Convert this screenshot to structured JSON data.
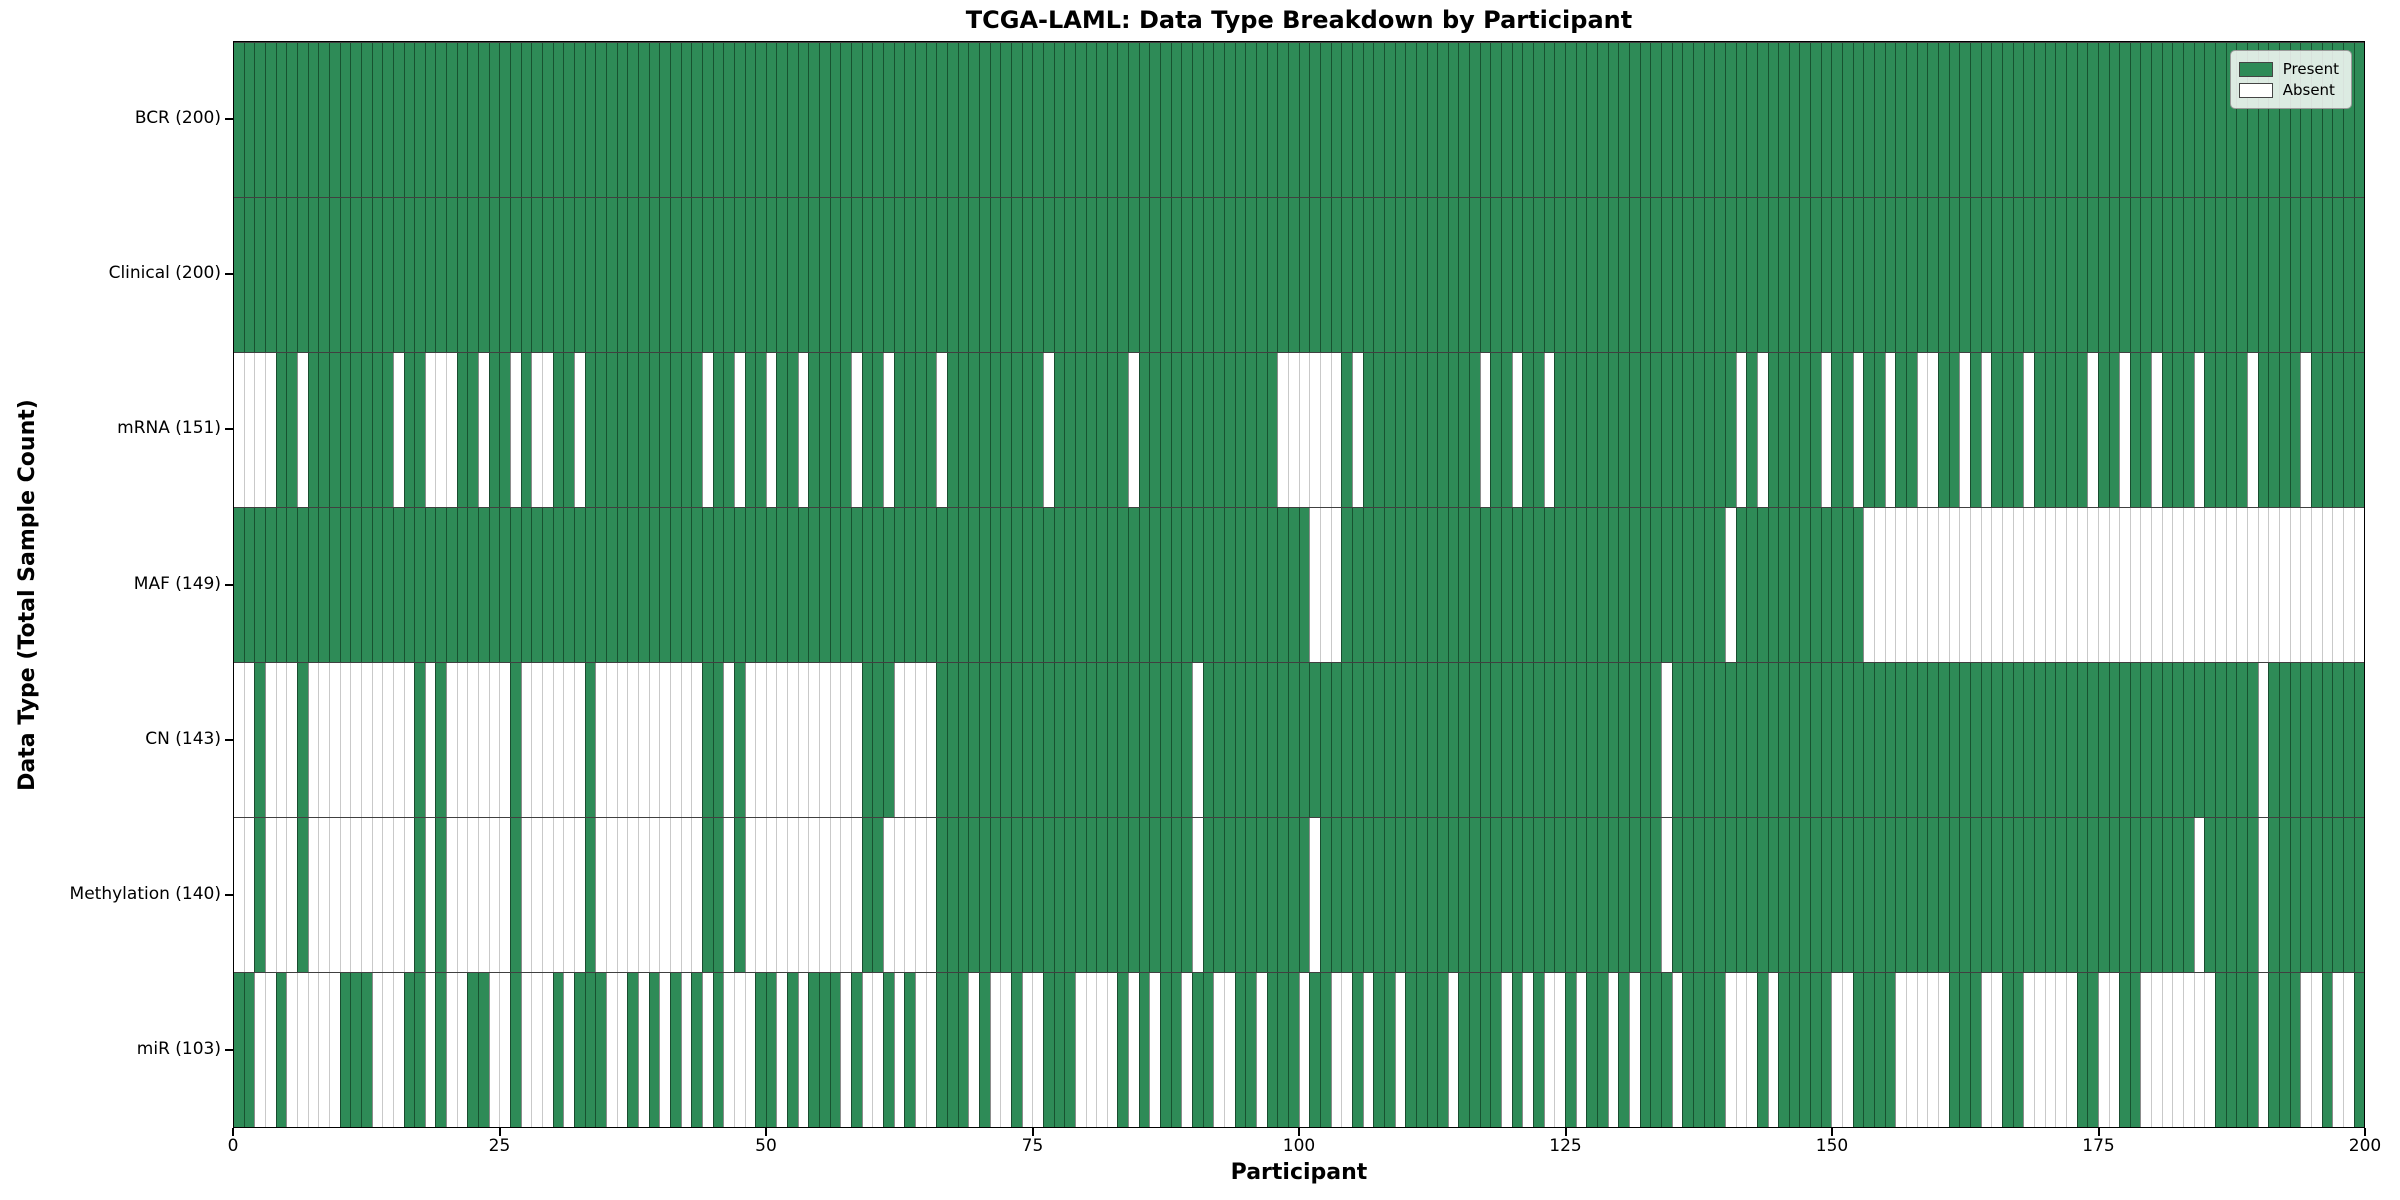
{
  "chart_data": {
    "type": "heatmap",
    "title": "TCGA-LAML: Data Type Breakdown by Participant",
    "xlabel": "Participant",
    "ylabel": "Data Type (Total Sample Count)",
    "x_range": [
      0,
      200
    ],
    "n_participants": 200,
    "x_ticks": [
      0,
      25,
      50,
      75,
      100,
      125,
      150,
      175,
      200
    ],
    "grid": false,
    "legend_position": "upper right",
    "legend": {
      "present_label": "Present",
      "absent_label": "Absent"
    },
    "colors": {
      "present": "#2e8b57",
      "absent": "#ffffff",
      "present_edge": "rgba(0,25,10,0.5)",
      "absent_edge": "#c9c9c9",
      "row_divider": "rgba(0,0,0,0.75)"
    },
    "rows": [
      {
        "label": "BCR (200)",
        "name": "BCR",
        "present_count": 200,
        "absent_indices": []
      },
      {
        "label": "Clinical (200)",
        "name": "Clinical",
        "present_count": 200,
        "absent_indices": []
      },
      {
        "label": "mRNA (151)",
        "name": "mRNA",
        "present_count": 151,
        "absent_indices": [
          0,
          1,
          2,
          3,
          6,
          15,
          18,
          19,
          20,
          23,
          26,
          28,
          29,
          32,
          44,
          47,
          50,
          53,
          58,
          61,
          66,
          76,
          84,
          98,
          99,
          100,
          101,
          102,
          103,
          105,
          117,
          120,
          123,
          141,
          143,
          149,
          152,
          155,
          158,
          159,
          162,
          164,
          168,
          174,
          177,
          180,
          184,
          189,
          194
        ]
      },
      {
        "label": "MAF (149)",
        "name": "MAF",
        "present_count": 149,
        "absent_indices": [
          101,
          102,
          103,
          140,
          153,
          154,
          155,
          156,
          157,
          158,
          159,
          160,
          161,
          162,
          163,
          164,
          165,
          166,
          167,
          168,
          169,
          170,
          171,
          172,
          173,
          174,
          175,
          176,
          177,
          178,
          179,
          180,
          181,
          182,
          183,
          184,
          185,
          186,
          187,
          188,
          189,
          190,
          191,
          192,
          193,
          194,
          195,
          196,
          197,
          198,
          199
        ]
      },
      {
        "label": "CN (143)",
        "name": "CN",
        "present_count": 143,
        "absent_indices": [
          0,
          1,
          3,
          4,
          5,
          7,
          8,
          9,
          10,
          11,
          12,
          13,
          14,
          15,
          16,
          18,
          20,
          21,
          22,
          23,
          24,
          25,
          27,
          28,
          29,
          30,
          31,
          32,
          34,
          35,
          36,
          37,
          38,
          39,
          40,
          41,
          42,
          43,
          46,
          48,
          49,
          50,
          51,
          52,
          53,
          54,
          55,
          56,
          57,
          58,
          62,
          63,
          64,
          65,
          90,
          134,
          190
        ]
      },
      {
        "label": "Methylation (140)",
        "name": "Methylation",
        "present_count": 140,
        "absent_indices": [
          0,
          1,
          3,
          4,
          5,
          7,
          8,
          9,
          10,
          11,
          12,
          13,
          14,
          15,
          16,
          18,
          20,
          21,
          22,
          23,
          24,
          25,
          27,
          28,
          29,
          30,
          31,
          32,
          34,
          35,
          36,
          37,
          38,
          39,
          40,
          41,
          42,
          43,
          46,
          48,
          49,
          50,
          51,
          52,
          53,
          54,
          55,
          56,
          57,
          58,
          61,
          62,
          63,
          64,
          65,
          90,
          101,
          134,
          184,
          190
        ]
      },
      {
        "label": "miR (103)",
        "name": "miR",
        "present_count": 103,
        "absent_indices": [
          2,
          3,
          5,
          6,
          7,
          8,
          9,
          13,
          14,
          15,
          18,
          20,
          21,
          24,
          25,
          27,
          28,
          29,
          31,
          35,
          36,
          38,
          40,
          42,
          44,
          46,
          47,
          48,
          51,
          53,
          57,
          59,
          60,
          62,
          64,
          65,
          69,
          71,
          72,
          74,
          75,
          79,
          80,
          81,
          82,
          84,
          86,
          89,
          92,
          93,
          96,
          100,
          103,
          104,
          106,
          109,
          114,
          119,
          121,
          123,
          124,
          126,
          129,
          131,
          135,
          140,
          141,
          142,
          144,
          150,
          151,
          156,
          157,
          158,
          159,
          160,
          164,
          165,
          168,
          169,
          170,
          171,
          172,
          175,
          176,
          179,
          180,
          181,
          182,
          183,
          184,
          185,
          190,
          194,
          195,
          197,
          198
        ]
      }
    ]
  }
}
